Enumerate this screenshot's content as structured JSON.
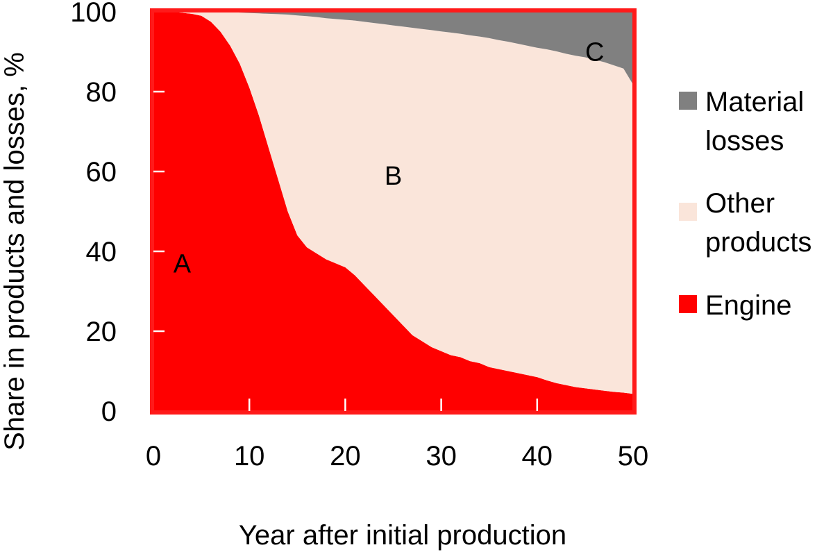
{
  "chart_data": {
    "type": "area",
    "stacked": true,
    "xlabel": "Year after initial production",
    "ylabel": "Share in products and losses, %",
    "xlim": [
      0,
      50
    ],
    "ylim": [
      0,
      100
    ],
    "xticks": [
      "0",
      "10",
      "20",
      "30",
      "40",
      "50"
    ],
    "yticks": [
      "0",
      "20",
      "40",
      "60",
      "80",
      "100"
    ],
    "grid": false,
    "legend_position": "right",
    "x": [
      0,
      2,
      4,
      5,
      6,
      7,
      8,
      9,
      10,
      11,
      12,
      13,
      14,
      15,
      16,
      17,
      18,
      19,
      20,
      21,
      22,
      23,
      24,
      25,
      26,
      27,
      28,
      29,
      30,
      31,
      32,
      33,
      34,
      35,
      36,
      37,
      38,
      39,
      40,
      41,
      42,
      43,
      44,
      45,
      46,
      47,
      48,
      49,
      50
    ],
    "series": [
      {
        "name": "Engine",
        "color": "#ff0000",
        "region_label": "A",
        "values": [
          100,
          100,
          99.5,
          99,
          97.5,
          95,
          91.5,
          87,
          81,
          74,
          66,
          58,
          50,
          44,
          41,
          39.5,
          38,
          37,
          36,
          34,
          31.5,
          29,
          26.5,
          24,
          21.5,
          19,
          17.5,
          16,
          15,
          14,
          13.5,
          12.5,
          12,
          11,
          10.5,
          10,
          9.5,
          9,
          8.5,
          7.7,
          7,
          6.5,
          6,
          5.7,
          5.4,
          5.1,
          4.8,
          4.6,
          4.3
        ]
      },
      {
        "name": "Other products",
        "color": "#fae5da",
        "region_label": "B",
        "values": [
          0,
          0,
          0.5,
          1,
          2.5,
          5,
          8.5,
          12.8,
          18.7,
          25.6,
          33.5,
          41.4,
          49.3,
          55.1,
          57.9,
          59.2,
          60.4,
          61.2,
          62,
          63.8,
          66,
          68.2,
          70.4,
          72.6,
          74.8,
          77,
          78.2,
          79.4,
          80.1,
          80.8,
          81,
          81.6,
          81.8,
          82.4,
          82.4,
          82.5,
          82.5,
          82.5,
          82.5,
          82.9,
          83.1,
          83,
          83,
          82.9,
          82.6,
          82.3,
          81.8,
          81.2,
          77.5
        ]
      },
      {
        "name": "Material losses",
        "color": "#808080",
        "region_label": "C",
        "values": [
          0,
          0,
          0,
          0,
          0,
          0,
          0,
          0.2,
          0.3,
          0.4,
          0.5,
          0.6,
          0.7,
          0.9,
          1.1,
          1.3,
          1.6,
          1.8,
          2,
          2.2,
          2.5,
          2.8,
          3.1,
          3.4,
          3.7,
          4,
          4.3,
          4.6,
          4.9,
          5.2,
          5.5,
          5.9,
          6.2,
          6.6,
          7.1,
          7.5,
          8,
          8.5,
          9,
          9.4,
          9.9,
          10.5,
          11,
          11.4,
          12,
          12.6,
          13.4,
          14.2,
          18.2
        ]
      }
    ],
    "legend": [
      "Material losses",
      "Other products",
      "Engine"
    ],
    "frame_color": "#ff1a1a"
  }
}
